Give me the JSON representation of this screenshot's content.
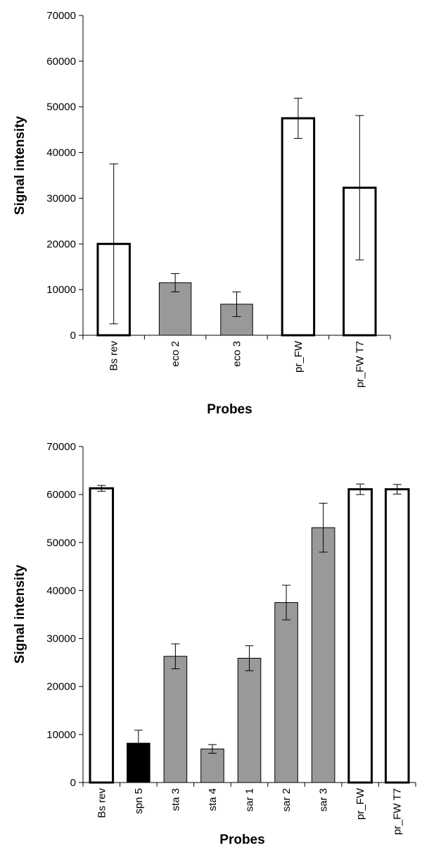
{
  "chart_data": [
    {
      "type": "bar",
      "xlabel": "Probes",
      "ylabel": "Signal intensity",
      "ylim": [
        0,
        70000
      ],
      "yticks": [
        0,
        10000,
        20000,
        30000,
        40000,
        50000,
        60000,
        70000
      ],
      "categories": [
        "Bs rev",
        "eco 2",
        "eco 3",
        "pr_FW",
        "pr_FW T7"
      ],
      "values": [
        20000,
        11500,
        6800,
        47500,
        32300
      ],
      "errors": [
        17500,
        2000,
        2700,
        4400,
        15800
      ],
      "colors": [
        "#ffffff",
        "#999999",
        "#999999",
        "#ffffff",
        "#ffffff"
      ],
      "grid": false,
      "legend": "none"
    },
    {
      "type": "bar",
      "xlabel": "Probes",
      "ylabel": "Signal intensity",
      "ylim": [
        0,
        70000
      ],
      "yticks": [
        0,
        10000,
        20000,
        30000,
        40000,
        50000,
        60000,
        70000
      ],
      "categories": [
        "Bs rev",
        "spn 5",
        "sta 3",
        "sta 4",
        "sar 1",
        "sar 2",
        "sar 3",
        "pr_FW",
        "pr_FW T7"
      ],
      "values": [
        61300,
        8200,
        26300,
        7000,
        25900,
        37500,
        53100,
        61100,
        61100
      ],
      "errors": [
        600,
        2700,
        2600,
        900,
        2600,
        3600,
        5100,
        1100,
        1000
      ],
      "colors": [
        "#ffffff",
        "#000000",
        "#999999",
        "#999999",
        "#999999",
        "#999999",
        "#999999",
        "#ffffff",
        "#ffffff"
      ],
      "grid": false,
      "legend": "none"
    }
  ]
}
